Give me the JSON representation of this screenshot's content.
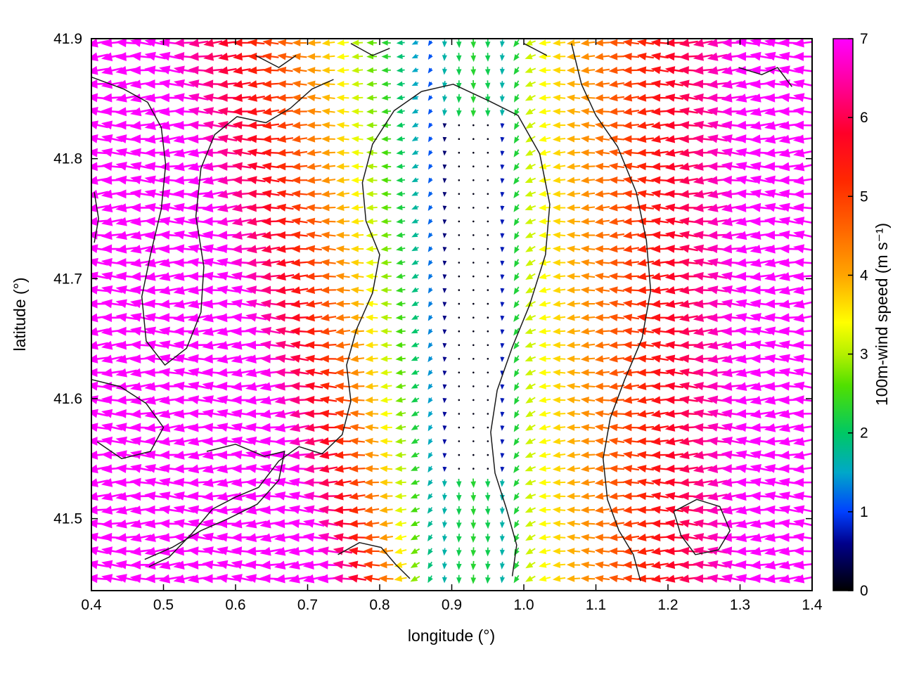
{
  "figure": {
    "background": "#ffffff"
  },
  "axes": {
    "x": {
      "title": "longitude (°)",
      "min": 0.4,
      "max": 1.4,
      "ticks": [
        {
          "v": 0.4,
          "label": "0.4"
        },
        {
          "v": 0.5,
          "label": "0.5"
        },
        {
          "v": 0.6,
          "label": "0.6"
        },
        {
          "v": 0.7,
          "label": "0.7"
        },
        {
          "v": 0.8,
          "label": "0.8"
        },
        {
          "v": 0.9,
          "label": "0.9"
        },
        {
          "v": 1.0,
          "label": "1.0"
        },
        {
          "v": 1.1,
          "label": "1.1"
        },
        {
          "v": 1.2,
          "label": "1.2"
        },
        {
          "v": 1.3,
          "label": "1.3"
        },
        {
          "v": 1.4,
          "label": "1.4"
        }
      ]
    },
    "y": {
      "title": "latitude (°)",
      "min": 41.44,
      "max": 41.9,
      "ticks": [
        {
          "v": 41.5,
          "label": "41.5"
        },
        {
          "v": 41.6,
          "label": "41.6"
        },
        {
          "v": 41.7,
          "label": "41.7"
        },
        {
          "v": 41.8,
          "label": "41.8"
        },
        {
          "v": 41.9,
          "label": "41.9"
        }
      ]
    }
  },
  "colorbar": {
    "label": "100m-wind speed (m s⁻¹)",
    "min": 0,
    "max": 7,
    "ticks": [
      {
        "v": 0,
        "label": "0"
      },
      {
        "v": 1,
        "label": "1"
      },
      {
        "v": 2,
        "label": "2"
      },
      {
        "v": 3,
        "label": "3"
      },
      {
        "v": 4,
        "label": "4"
      },
      {
        "v": 5,
        "label": "5"
      },
      {
        "v": 6,
        "label": "6"
      },
      {
        "v": 7,
        "label": "7"
      }
    ],
    "palette": [
      [
        0.0,
        "#000000"
      ],
      [
        0.6,
        "#00008b"
      ],
      [
        1.0,
        "#0040ff"
      ],
      [
        1.5,
        "#00a8c8"
      ],
      [
        2.0,
        "#00c864"
      ],
      [
        2.6,
        "#50e000"
      ],
      [
        3.0,
        "#b4f000"
      ],
      [
        3.4,
        "#ffff00"
      ],
      [
        4.0,
        "#ffa500"
      ],
      [
        4.6,
        "#ff6400"
      ],
      [
        5.2,
        "#ff2800"
      ],
      [
        5.8,
        "#ff0028"
      ],
      [
        6.4,
        "#ff0096"
      ],
      [
        7.0,
        "#ff00ff"
      ]
    ]
  },
  "chart_data": {
    "type": "quiver",
    "x_range": [
      0.4,
      1.4
    ],
    "y_range": [
      41.44,
      41.9
    ],
    "speed_range": [
      0,
      7
    ],
    "flow_summary": "Predominantly westward (left-pointing) 100 m wind vectors colored by speed; a calm near-zero north-south band near longitude 0.90-0.96 (dark dots), speeds increasing to 7 m/s (magenta) toward the west and east edges, strongest in the southwest quadrant; small southward green arrows cap the calm band at its north and south ends; thin black terrain/contour lines overlay the field.",
    "grid": {
      "lon_start": 0.41,
      "lon_step": 0.02,
      "nx": 50,
      "lat_start": 41.45,
      "lat_step": 0.01145,
      "ny": 40
    },
    "field_model": {
      "band": {
        "west_edge": 0.9,
        "east_edge": 0.96,
        "center": 0.93
      },
      "west": {
        "w_top": 0.4,
        "w_south_extra": 0.24,
        "exp": 0.75
      },
      "east": {
        "inner_width": 0.04,
        "inner_slope": 75,
        "base": 3.0,
        "outer_slope": 13.3
      },
      "floors": {
        "inside": 0.1,
        "band_cap_north": 41.835,
        "band_cap_south": 41.535,
        "cap_amp": 2.3,
        "cap_sigma": 0.07
      },
      "direction": {
        "base_deg": 180,
        "down_deg": 90,
        "sigma": 0.045,
        "wiggle": 0.22
      }
    },
    "contours": [
      [
        [
          0.4,
          41.868
        ],
        [
          0.445,
          41.858
        ],
        [
          0.478,
          41.847
        ],
        [
          0.497,
          41.826
        ],
        [
          0.503,
          41.795
        ],
        [
          0.497,
          41.758
        ],
        [
          0.482,
          41.72
        ],
        [
          0.47,
          41.685
        ],
        [
          0.476,
          41.648
        ],
        [
          0.502,
          41.628
        ],
        [
          0.532,
          41.642
        ],
        [
          0.552,
          41.672
        ],
        [
          0.556,
          41.71
        ],
        [
          0.545,
          41.752
        ],
        [
          0.552,
          41.792
        ],
        [
          0.571,
          41.82
        ],
        [
          0.602,
          41.835
        ],
        [
          0.642,
          41.83
        ],
        [
          0.676,
          41.842
        ],
        [
          0.706,
          41.858
        ],
        [
          0.736,
          41.866
        ]
      ],
      [
        [
          0.858,
          41.856
        ],
        [
          0.902,
          41.862
        ],
        [
          0.952,
          41.848
        ],
        [
          0.992,
          41.836
        ],
        [
          1.022,
          41.804
        ],
        [
          1.036,
          41.762
        ],
        [
          1.03,
          41.72
        ],
        [
          1.008,
          41.678
        ],
        [
          0.984,
          41.643
        ],
        [
          0.963,
          41.607
        ],
        [
          0.954,
          41.572
        ],
        [
          0.96,
          41.538
        ],
        [
          0.976,
          41.508
        ],
        [
          0.99,
          41.478
        ],
        [
          0.984,
          41.452
        ]
      ],
      [
        [
          0.858,
          41.856
        ],
        [
          0.82,
          41.84
        ],
        [
          0.79,
          41.812
        ],
        [
          0.776,
          41.78
        ],
        [
          0.781,
          41.748
        ],
        [
          0.8,
          41.72
        ],
        [
          0.79,
          41.688
        ],
        [
          0.768,
          41.658
        ],
        [
          0.754,
          41.628
        ],
        [
          0.76,
          41.598
        ],
        [
          0.748,
          41.57
        ],
        [
          0.72,
          41.554
        ],
        [
          0.688,
          41.56
        ],
        [
          0.66,
          41.548
        ],
        [
          0.632,
          41.526
        ],
        [
          0.6,
          41.518
        ],
        [
          0.568,
          41.508
        ],
        [
          0.54,
          41.488
        ],
        [
          0.508,
          41.468
        ],
        [
          0.48,
          41.46
        ]
      ],
      [
        [
          1.066,
          41.896
        ],
        [
          1.08,
          41.862
        ],
        [
          1.1,
          41.836
        ],
        [
          1.13,
          41.81
        ],
        [
          1.156,
          41.772
        ],
        [
          1.17,
          41.732
        ],
        [
          1.176,
          41.69
        ],
        [
          1.164,
          41.65
        ],
        [
          1.14,
          41.616
        ],
        [
          1.12,
          41.584
        ],
        [
          1.11,
          41.55
        ],
        [
          1.116,
          41.516
        ],
        [
          1.132,
          41.49
        ],
        [
          1.152,
          41.47
        ],
        [
          1.162,
          41.448
        ]
      ],
      [
        [
          0.4,
          41.616
        ],
        [
          0.44,
          41.61
        ],
        [
          0.476,
          41.596
        ],
        [
          0.5,
          41.576
        ],
        [
          0.482,
          41.556
        ],
        [
          0.442,
          41.55
        ],
        [
          0.408,
          41.564
        ]
      ],
      [
        [
          0.56,
          41.556
        ],
        [
          0.6,
          41.562
        ],
        [
          0.64,
          41.552
        ],
        [
          0.668,
          41.556
        ],
        [
          0.66,
          41.532
        ],
        [
          0.63,
          41.512
        ],
        [
          0.59,
          41.5
        ],
        [
          0.552,
          41.49
        ],
        [
          0.512,
          41.476
        ],
        [
          0.474,
          41.466
        ]
      ],
      [
        [
          0.742,
          41.47
        ],
        [
          0.772,
          41.48
        ],
        [
          0.802,
          41.476
        ],
        [
          0.822,
          41.462
        ],
        [
          0.842,
          41.45
        ]
      ],
      [
        [
          1.208,
          41.506
        ],
        [
          1.24,
          41.516
        ],
        [
          1.272,
          41.51
        ],
        [
          1.286,
          41.49
        ],
        [
          1.27,
          41.474
        ],
        [
          1.238,
          41.47
        ],
        [
          1.218,
          41.486
        ],
        [
          1.208,
          41.506
        ]
      ],
      [
        [
          0.628,
          41.886
        ],
        [
          0.66,
          41.876
        ],
        [
          0.684,
          41.886
        ]
      ],
      [
        [
          0.76,
          41.896
        ],
        [
          0.79,
          41.886
        ],
        [
          0.814,
          41.892
        ]
      ],
      [
        [
          1.0,
          41.896
        ],
        [
          1.032,
          41.886
        ]
      ],
      [
        [
          1.298,
          41.876
        ],
        [
          1.33,
          41.87
        ],
        [
          1.352,
          41.876
        ],
        [
          1.372,
          41.86
        ]
      ],
      [
        [
          0.404,
          41.772
        ],
        [
          0.41,
          41.75
        ],
        [
          0.404,
          41.73
        ]
      ]
    ]
  }
}
